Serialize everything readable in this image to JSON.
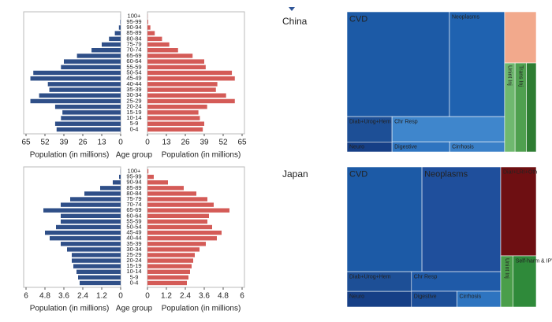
{
  "chart_data": [
    {
      "type": "pyramid",
      "categories": [
        "0-4",
        "5-9",
        "10-14",
        "15-19",
        "20-24",
        "25-29",
        "30-34",
        "35-39",
        "40-44",
        "45-49",
        "50-54",
        "55-59",
        "60-64",
        "65-69",
        "70-74",
        "75-79",
        "80-84",
        "85-89",
        "90-94",
        "95-99",
        "100+"
      ],
      "series": [
        {
          "color": "#2f4f88",
          "values": [
            44,
            45,
            41,
            40,
            45,
            62,
            56,
            49,
            50,
            62,
            60,
            41,
            39,
            30,
            20,
            13,
            8,
            4,
            1.2,
            0.3,
            0.05
          ]
        },
        {
          "color": "#d45b57",
          "values": [
            38,
            39,
            36,
            35,
            41,
            60,
            54,
            47,
            48,
            60,
            58,
            40,
            39,
            31,
            21,
            15,
            10,
            5,
            2,
            0.5,
            0.1
          ]
        }
      ],
      "xlim": [
        0,
        65
      ],
      "xticks": [
        0,
        13,
        26,
        39,
        52,
        65
      ],
      "xlabel": "Population (in millions)",
      "center_label": "Age group"
    },
    {
      "type": "treemap",
      "title": "China",
      "tree": {
        "children": [
          {
            "children": [
              {
                "children": [
                  {
                    "label": "CVD",
                    "value": 40.5,
                    "color": "#1c5aa6"
                  },
                  {
                    "label": "Neoplasms",
                    "value": 21.8,
                    "color": "#1f62b0"
                  }
                ]
              },
              {
                "children": [
                  {
                    "children": [
                      {
                        "label": "Diab+Urog+Hem",
                        "value": 4.3,
                        "color": "#1d4f96"
                      },
                      {
                        "label": "Neuro",
                        "value": 1.7,
                        "color": "#163f86"
                      }
                    ]
                  },
                  {
                    "children": [
                      {
                        "label": "Chr Resp",
                        "value": 10.7,
                        "color": "#3f86cc"
                      },
                      {
                        "children": [
                          {
                            "label": "Digestive",
                            "value": 2.2,
                            "color": "#2e74c0"
                          },
                          {
                            "label": "Cirrhosis",
                            "value": 2.1,
                            "color": "#3a80c8"
                          }
                        ]
                      }
                    ]
                  }
                ]
              }
            ]
          },
          {
            "children": [
              {
                "value": 6.1,
                "color": "#f2a98c"
              },
              {
                "children": [
                  {
                    "label": "Unint Inj",
                    "value": 3.5,
                    "color": "#6fb86f"
                  },
                  {
                    "label": "Trans Inj",
                    "value": 3.8,
                    "color": "#4fa04f"
                  },
                  {
                    "value": 3.3,
                    "color": "#2e7d32"
                  }
                ]
              }
            ]
          }
        ]
      }
    },
    {
      "type": "pyramid",
      "categories": [
        "0-4",
        "5-9",
        "10-14",
        "15-19",
        "20-24",
        "25-29",
        "30-34",
        "35-39",
        "40-44",
        "45-49",
        "50-54",
        "55-59",
        "60-64",
        "65-69",
        "70-74",
        "75-79",
        "80-84",
        "85-89",
        "90-94",
        "95-99",
        "100+"
      ],
      "series": [
        {
          "color": "#2f4f88",
          "values": [
            2.6,
            2.7,
            2.8,
            3.0,
            3.1,
            3.1,
            3.4,
            3.8,
            4.5,
            4.8,
            4.1,
            3.8,
            3.8,
            4.9,
            3.8,
            3.2,
            2.3,
            1.3,
            0.5,
            0.1,
            0.01
          ]
        },
        {
          "color": "#d45b57",
          "values": [
            2.5,
            2.6,
            2.7,
            2.8,
            2.9,
            3.0,
            3.3,
            3.7,
            4.4,
            4.7,
            4.1,
            3.8,
            3.9,
            5.2,
            4.2,
            3.8,
            3.1,
            2.3,
            1.3,
            0.4,
            0.06
          ]
        }
      ],
      "xlim": [
        0,
        6
      ],
      "xticks": [
        0,
        1.2,
        2.4,
        3.6,
        4.8,
        6
      ],
      "xlabel": "Population (in millions)",
      "center_label": "Age group"
    },
    {
      "type": "treemap",
      "title": "Japan",
      "tree": {
        "children": [
          {
            "children": [
              {
                "children": [
                  {
                    "label": "CVD",
                    "value": 29.6,
                    "color": "#1c5aa6"
                  },
                  {
                    "label": "Neoplasms",
                    "value": 31.1,
                    "color": "#1f4f9c"
                  }
                ]
              },
              {
                "children": [
                  {
                    "children": [
                      {
                        "label": "Diab+Urog+Hem",
                        "value": 4.8,
                        "color": "#1d4f96"
                      },
                      {
                        "label": "Neuro",
                        "value": 3.8,
                        "color": "#163f86"
                      }
                    ]
                  },
                  {
                    "children": [
                      {
                        "label": "Chr Resp",
                        "value": 6.6,
                        "color": "#1f5aa8"
                      },
                      {
                        "children": [
                          {
                            "label": "Digestive",
                            "value": 2.7,
                            "color": "#1c4e98"
                          },
                          {
                            "label": "Cirrhosis",
                            "value": 2.6,
                            "color": "#2e74c0"
                          }
                        ]
                      }
                    ]
                  }
                ]
              }
            ]
          },
          {
            "children": [
              {
                "label": "Diar+LRI+Oth",
                "value": 11.9,
                "color": "#6e0f12"
              },
              {
                "children": [
                  {
                    "label": "Unint Inj",
                    "value": 2.4,
                    "color": "#4a9e4a"
                  },
                  {
                    "label": "Self-harm & IPV",
                    "value": 4.45,
                    "color": "#2f8a3a"
                  }
                ]
              }
            ]
          }
        ]
      }
    }
  ]
}
